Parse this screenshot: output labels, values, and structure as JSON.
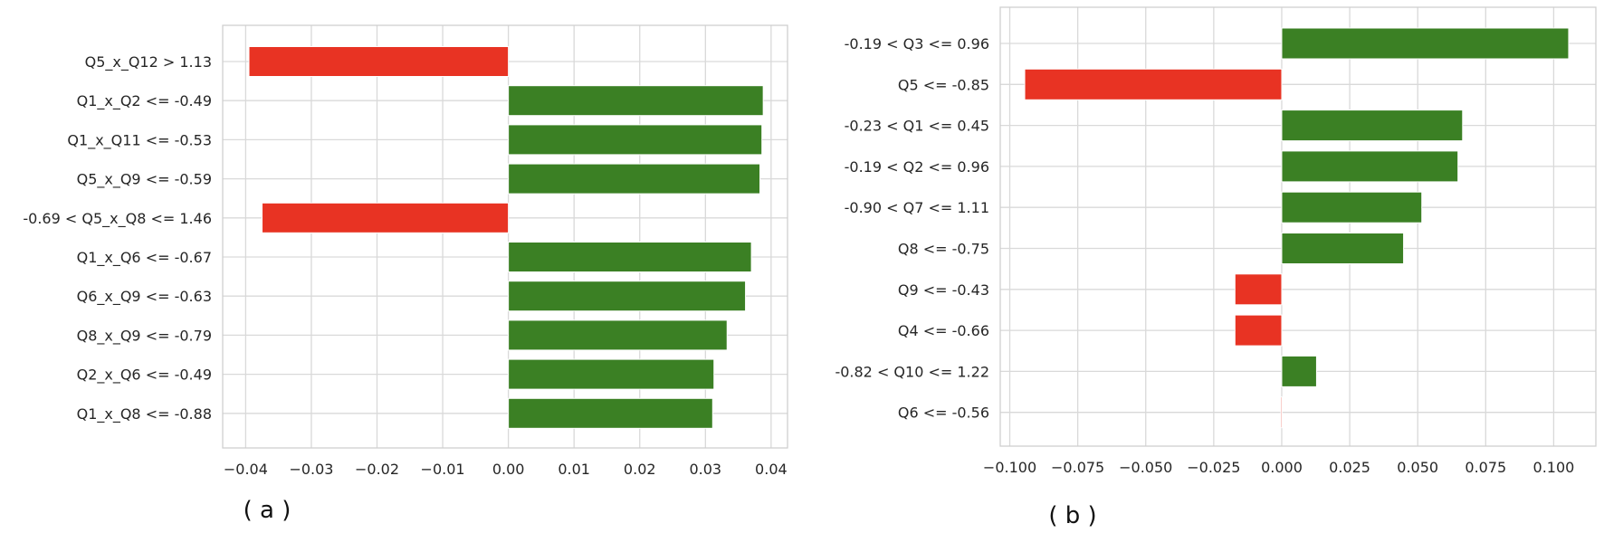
{
  "colors": {
    "positive": "#3b8024",
    "negative": "#e83323",
    "grid": "#d9d9d9",
    "frame": "#cfcfcf"
  },
  "chart_data": [
    {
      "type": "bar",
      "orientation": "horizontal",
      "caption": "( a )",
      "categories": [
        "Q5_x_Q12 > 1.13",
        "Q1_x_Q2 <= -0.49",
        "Q1_x_Q11 <= -0.53",
        "Q5_x_Q9 <= -0.59",
        "-0.69 < Q5_x_Q8 <= 1.46",
        "Q1_x_Q6 <= -0.67",
        "Q6_x_Q9 <= -0.63",
        "Q8_x_Q9 <= -0.79",
        "Q2_x_Q6 <= -0.49",
        "Q1_x_Q8 <= -0.88"
      ],
      "values": [
        -0.0395,
        0.0388,
        0.0386,
        0.0383,
        -0.0375,
        0.037,
        0.0361,
        0.0333,
        0.0313,
        0.0311
      ],
      "xlim": [
        -0.0435,
        0.0425
      ],
      "xticks": [
        -0.04,
        -0.03,
        -0.02,
        -0.01,
        0.0,
        0.01,
        0.02,
        0.03,
        0.04
      ],
      "xtick_labels": [
        "−0.04",
        "−0.03",
        "−0.02",
        "−0.01",
        "0.00",
        "0.01",
        "0.02",
        "0.03",
        "0.04"
      ],
      "grid": true
    },
    {
      "type": "bar",
      "orientation": "horizontal",
      "caption": "( b )",
      "categories": [
        "-0.19 < Q3 <= 0.96",
        "Q5 <= -0.85",
        "-0.23 < Q1 <= 0.45",
        "-0.19 < Q2 <= 0.96",
        "-0.90 < Q7 <= 1.11",
        "Q8 <= -0.75",
        "Q9 <= -0.43",
        "Q4 <= -0.66",
        "-0.82 < Q10 <= 1.22",
        "Q6 <= -0.56"
      ],
      "values": [
        0.1055,
        -0.0945,
        0.0665,
        0.0648,
        0.0515,
        0.0448,
        -0.0172,
        -0.0172,
        0.0128,
        -0.0003
      ],
      "xlim": [
        -0.1035,
        0.1155
      ],
      "xticks": [
        -0.1,
        -0.075,
        -0.05,
        -0.025,
        0.0,
        0.025,
        0.05,
        0.075,
        0.1
      ],
      "xtick_labels": [
        "−0.100",
        "−0.075",
        "−0.050",
        "−0.025",
        "0.000",
        "0.025",
        "0.050",
        "0.075",
        "0.100"
      ],
      "grid": true
    }
  ]
}
